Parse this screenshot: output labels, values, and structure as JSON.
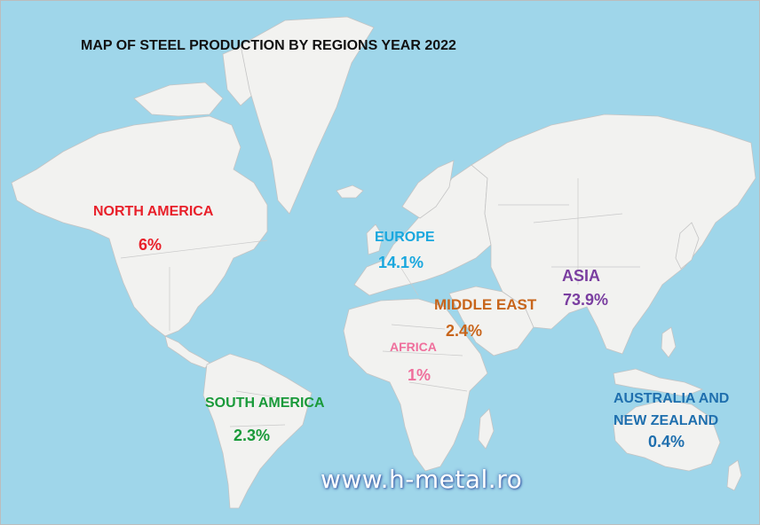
{
  "title": "MAP OF STEEL PRODUCTION BY REGIONS YEAR 2022",
  "colors": {
    "ocean": "#9fd6ea",
    "land": "#f2f2f0",
    "north_america": "#e8202a",
    "europe": "#19a7de",
    "middle_east": "#c8651b",
    "asia": "#7a3ea0",
    "africa": "#ef6f9c",
    "south_america": "#1a9a3a",
    "australia": "#1f6fae"
  },
  "regions": {
    "north_america": {
      "name": "NORTH AMERICA",
      "value": "6%"
    },
    "europe": {
      "name": "EUROPE",
      "value": "14.1%"
    },
    "middle_east": {
      "name": "MIDDLE EAST",
      "value": "2.4%"
    },
    "asia": {
      "name": "ASIA",
      "value": "73.9%"
    },
    "africa": {
      "name": "AFRICA",
      "value": "1%"
    },
    "south_america": {
      "name": "SOUTH AMERICA",
      "value": "2.3%"
    },
    "australia": {
      "name_line1": "AUSTRALIA AND",
      "name_line2": "NEW ZEALAND",
      "value": "0.4%"
    }
  },
  "website": "www.h-metal.ro"
}
